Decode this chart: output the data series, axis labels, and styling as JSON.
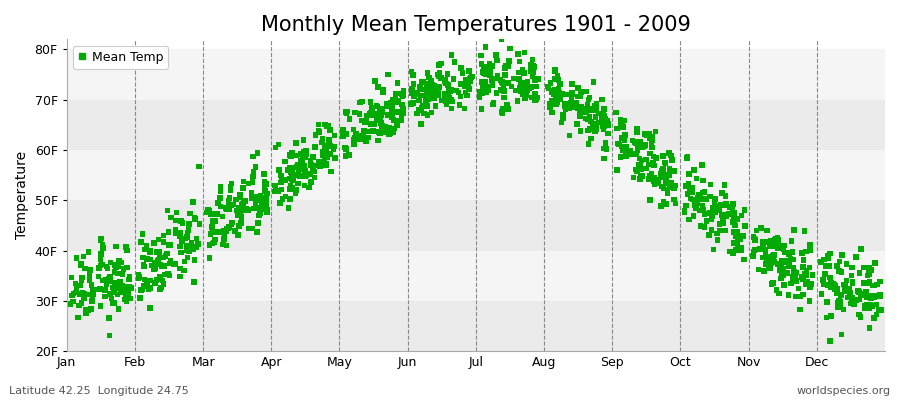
{
  "title": "Monthly Mean Temperatures 1901 - 2009",
  "ylabel": "Temperature",
  "xlabel": "",
  "footer_left": "Latitude 42.25  Longitude 24.75",
  "footer_right": "worldspecies.org",
  "legend_label": "Mean Temp",
  "months": [
    "Jan",
    "Feb",
    "Mar",
    "Apr",
    "May",
    "Jun",
    "Jul",
    "Aug",
    "Sep",
    "Oct",
    "Nov",
    "Dec"
  ],
  "ylim": [
    20,
    82
  ],
  "xlim": [
    0,
    12
  ],
  "yticks": [
    20,
    30,
    40,
    50,
    60,
    70,
    80
  ],
  "ytick_labels": [
    "20F",
    "30F",
    "40F",
    "50F",
    "60F",
    "70F",
    "80F"
  ],
  "mean_temps_f": [
    32.0,
    34.5,
    43.5,
    52.0,
    62.0,
    70.5,
    74.0,
    73.0,
    63.5,
    52.5,
    42.0,
    33.5
  ],
  "end_temps_f": [
    34.5,
    43.5,
    52.0,
    62.0,
    70.5,
    74.0,
    73.0,
    63.5,
    52.5,
    42.0,
    33.5,
    32.0
  ],
  "std_temps_f": [
    3.5,
    3.5,
    3.5,
    3.0,
    3.0,
    2.5,
    2.5,
    2.5,
    3.0,
    3.5,
    3.5,
    3.5
  ],
  "n_years": 109,
  "marker_color": "#00AA00",
  "marker": "s",
  "marker_size": 4,
  "bg_color": "#ffffff",
  "band_colors": [
    "#ebebeb",
    "#f5f5f5"
  ],
  "title_fontsize": 15,
  "axis_label_fontsize": 10,
  "tick_fontsize": 9,
  "footer_fontsize": 8,
  "legend_fontsize": 9,
  "grid_color": "#888888",
  "grid_linestyle": "--",
  "grid_linewidth": 0.8
}
